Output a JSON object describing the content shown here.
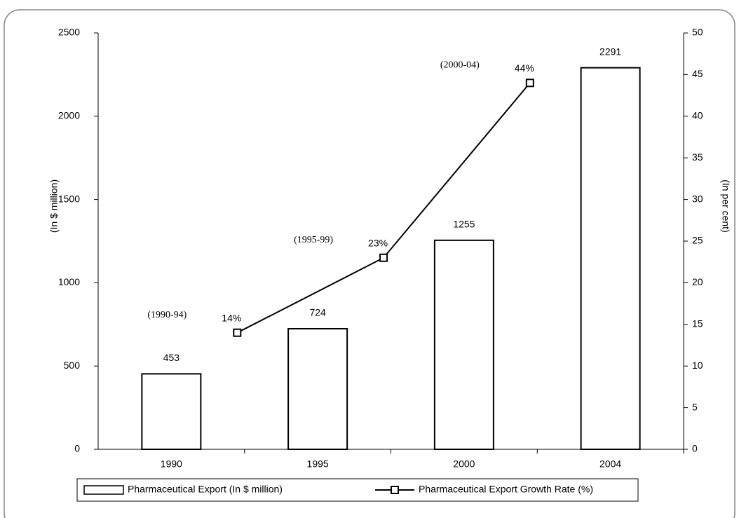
{
  "chart_data": {
    "type": "bar",
    "categories": [
      "1990",
      "1995",
      "2000",
      "2004"
    ],
    "series": [
      {
        "name": "Pharmaceutical Export (In $ million)",
        "type": "bar",
        "color": "#ffffff",
        "values": [
          453,
          724,
          1255,
          2291
        ]
      },
      {
        "name": "Pharmaceutical Export Growth Rate (%)",
        "type": "line",
        "axis": "y2",
        "color": "#000000",
        "values": [
          14,
          23,
          44,
          null
        ],
        "value_labels": [
          "14%",
          "23%",
          "44%",
          null
        ],
        "periods": [
          "(1990-94)",
          "(1995-99)",
          "(2000-04)",
          null
        ]
      }
    ],
    "ylabel": "(In $ million)",
    "y2label": "(In per cent)",
    "ylim": [
      0,
      2500
    ],
    "yticks": [
      0,
      500,
      1000,
      1500,
      2000,
      2500
    ],
    "y2lim": [
      0,
      50
    ],
    "y2ticks": [
      0,
      5,
      10,
      15,
      20,
      25,
      30,
      35,
      40,
      45,
      50
    ],
    "grid": false,
    "legend": "bottom"
  }
}
